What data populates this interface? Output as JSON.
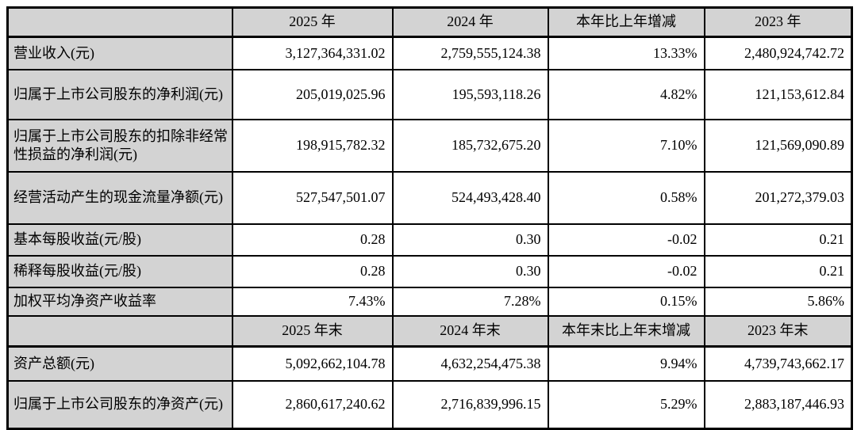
{
  "colors": {
    "header_bg": "#d3d3d3",
    "border": "#000000",
    "text": "#000000",
    "page_bg": "#ffffff"
  },
  "table": {
    "section1": {
      "headers": [
        "",
        "2025 年",
        "2024 年",
        "本年比上年增减",
        "2023 年"
      ],
      "rows": [
        {
          "label": "营业收入(元)",
          "values": [
            "3,127,364,331.02",
            "2,759,555,124.38",
            "13.33%",
            "2,480,924,742.72"
          ]
        },
        {
          "label": "归属于上市公司股东的净利润(元)",
          "values": [
            "205,019,025.96",
            "195,593,118.26",
            "4.82%",
            "121,153,612.84"
          ]
        },
        {
          "label": "归属于上市公司股东的扣除非经常性损益的净利润(元)",
          "values": [
            "198,915,782.32",
            "185,732,675.20",
            "7.10%",
            "121,569,090.89"
          ]
        },
        {
          "label": "经营活动产生的现金流量净额(元)",
          "values": [
            "527,547,501.07",
            "524,493,428.40",
            "0.58%",
            "201,272,379.03"
          ]
        },
        {
          "label": "基本每股收益(元/股)",
          "values": [
            "0.28",
            "0.30",
            "-0.02",
            "0.21"
          ]
        },
        {
          "label": "稀释每股收益(元/股)",
          "values": [
            "0.28",
            "0.30",
            "-0.02",
            "0.21"
          ]
        },
        {
          "label": "加权平均净资产收益率",
          "values": [
            "7.43%",
            "7.28%",
            "0.15%",
            "5.86%"
          ]
        }
      ]
    },
    "section2": {
      "headers": [
        "",
        "2025 年末",
        "2024 年末",
        "本年末比上年末增减",
        "2023 年末"
      ],
      "rows": [
        {
          "label": "资产总额(元)",
          "values": [
            "5,092,662,104.78",
            "4,632,254,475.38",
            "9.94%",
            "4,739,743,662.17"
          ]
        },
        {
          "label": "归属于上市公司股东的净资产(元)",
          "values": [
            "2,860,617,240.62",
            "2,716,839,996.15",
            "5.29%",
            "2,883,187,446.93"
          ]
        }
      ]
    }
  }
}
